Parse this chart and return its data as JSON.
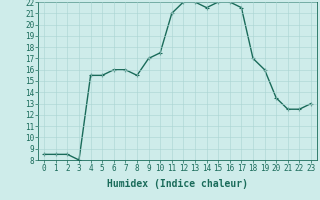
{
  "title": "",
  "xlabel": "Humidex (Indice chaleur)",
  "ylabel": "",
  "x": [
    0,
    1,
    2,
    3,
    4,
    5,
    6,
    7,
    8,
    9,
    10,
    11,
    12,
    13,
    14,
    15,
    16,
    17,
    18,
    19,
    20,
    21,
    22,
    23
  ],
  "y": [
    8.5,
    8.5,
    8.5,
    8.0,
    15.5,
    15.5,
    16.0,
    16.0,
    15.5,
    17.0,
    17.5,
    21.0,
    22.0,
    22.0,
    21.5,
    22.0,
    22.0,
    21.5,
    17.0,
    16.0,
    13.5,
    12.5,
    12.5,
    13.0
  ],
  "line_color": "#1a6b5a",
  "marker": "+",
  "marker_size": 3,
  "bg_color": "#ceecea",
  "grid_color": "#aad4d2",
  "ylim": [
    8,
    22
  ],
  "xlim": [
    -0.5,
    23.5
  ],
  "yticks": [
    8,
    9,
    10,
    11,
    12,
    13,
    14,
    15,
    16,
    17,
    18,
    19,
    20,
    21,
    22
  ],
  "xticks": [
    0,
    1,
    2,
    3,
    4,
    5,
    6,
    7,
    8,
    9,
    10,
    11,
    12,
    13,
    14,
    15,
    16,
    17,
    18,
    19,
    20,
    21,
    22,
    23
  ],
  "tick_fontsize": 5.5,
  "xlabel_fontsize": 7,
  "line_width": 1.0,
  "marker_edge_width": 0.8
}
